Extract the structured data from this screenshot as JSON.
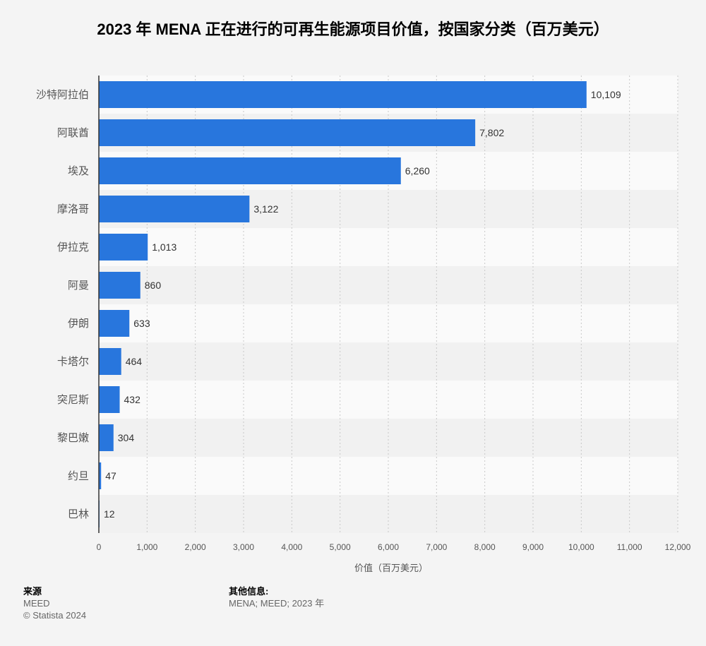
{
  "title": "2023 年 MENA 正在进行的可再生能源项目价值，按国家分类（百万美元）",
  "chart_data": {
    "type": "bar",
    "orientation": "horizontal",
    "categories": [
      "沙特阿拉伯",
      "阿联酋",
      "埃及",
      "摩洛哥",
      "伊拉克",
      "阿曼",
      "伊朗",
      "卡塔尔",
      "突尼斯",
      "黎巴嫩",
      "约旦",
      "巴林"
    ],
    "values": [
      10109,
      7802,
      6260,
      3122,
      1013,
      860,
      633,
      464,
      432,
      304,
      47,
      12
    ],
    "value_labels": [
      "10,109",
      "7,802",
      "6,260",
      "3,122",
      "1,013",
      "860",
      "633",
      "464",
      "432",
      "304",
      "47",
      "12"
    ],
    "xlim": [
      0,
      12000
    ],
    "xticks": [
      0,
      1000,
      2000,
      3000,
      4000,
      5000,
      6000,
      7000,
      8000,
      9000,
      10000,
      11000,
      12000
    ],
    "xtick_labels": [
      "0",
      "1,000",
      "2,000",
      "3,000",
      "4,000",
      "5,000",
      "6,000",
      "7,000",
      "8,000",
      "9,000",
      "10,000",
      "11,000",
      "12,000"
    ],
    "xlabel": "价值（百万美元）",
    "ylabel": "",
    "bar_color": "#2876dd",
    "grid": true
  },
  "footer": {
    "source_heading": "来源",
    "source_name": "MEED",
    "copyright": "© Statista 2024",
    "info_heading": "其他信息:",
    "info_text": "MENA; MEED; 2023 年"
  }
}
